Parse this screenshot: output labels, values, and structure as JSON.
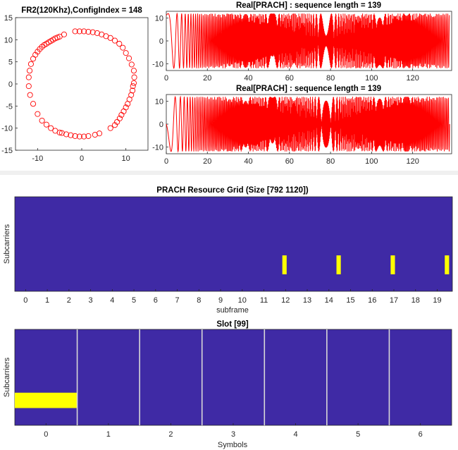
{
  "chart_data": [
    {
      "type": "scatter",
      "title": "FR2(120Khz),ConfigIndex = 148",
      "xlim": [
        -15,
        15
      ],
      "ylim": [
        -15,
        15
      ],
      "xticks": [
        "-10",
        "0",
        "10"
      ],
      "yticks": [
        "15",
        "10",
        "5",
        "0",
        "-5",
        "-10",
        "-15"
      ],
      "marker": "circle",
      "color": "#ff0000",
      "points": {
        "x": [
          -1.5,
          -0.5,
          0.5,
          1.5,
          2.5,
          3.5,
          4.5,
          5.5,
          6.5,
          7.5,
          8.5,
          9.3,
          10.0,
          10.7,
          11.3,
          11.8,
          11.9,
          11.8,
          11.6,
          11.5,
          11.2,
          10.8,
          10.4,
          10.0,
          9.5,
          9.0,
          8.6,
          8.0,
          7.5,
          6.5,
          4.0,
          3.0,
          1.5,
          0.5,
          -0.5,
          -1.5,
          -2.5,
          -3.5,
          -4.5,
          -5.0,
          -6.0,
          -7.0,
          -8.0,
          -9.0,
          -10.0,
          -11.0,
          -11.7,
          -12.0,
          -12.0,
          -11.8,
          -11.5,
          -11.0,
          -10.5,
          -10.0,
          -9.5,
          -9.0,
          -8.5,
          -8.0,
          -7.5,
          -7.0,
          -6.5,
          -6.0,
          -5.5,
          -5.0,
          -4.0
        ],
        "y": [
          11.9,
          11.9,
          11.9,
          11.8,
          11.7,
          11.5,
          11.2,
          10.8,
          10.4,
          9.8,
          9.1,
          8.2,
          7.0,
          5.8,
          4.4,
          3.0,
          1.5,
          0.2,
          -0.5,
          -1.5,
          -2.5,
          -3.5,
          -4.5,
          -5.3,
          -6.2,
          -7.0,
          -7.8,
          -8.6,
          -9.3,
          -10.0,
          -11.2,
          -11.5,
          -11.8,
          -11.9,
          -11.9,
          -11.8,
          -11.6,
          -11.4,
          -11.1,
          -11.0,
          -10.6,
          -10.0,
          -9.2,
          -8.3,
          -6.8,
          -4.5,
          -2.5,
          -0.5,
          1.5,
          3.0,
          4.5,
          5.7,
          6.6,
          7.3,
          7.9,
          8.4,
          8.8,
          9.1,
          9.4,
          9.7,
          10.0,
          10.3,
          10.5,
          10.7,
          11.2
        ]
      }
    },
    {
      "type": "line",
      "title": "Real[PRACH] : sequence length = 139",
      "xlim": [
        0,
        139
      ],
      "ylim": [
        -13,
        13
      ],
      "xticks": [
        "0",
        "20",
        "40",
        "60",
        "80",
        "100",
        "120"
      ],
      "yticks": [
        "10",
        "0",
        "-10"
      ],
      "color": "#ff0000",
      "series": [
        {
          "root": 148,
          "length": 139,
          "shape": "chirp-cos",
          "amplitude": 12,
          "phase_offset": 0.35
        }
      ]
    },
    {
      "type": "line",
      "title": "Real[PRACH] : sequence length = 139",
      "xlim": [
        0,
        139
      ],
      "ylim": [
        -13,
        13
      ],
      "xticks": [
        "0",
        "20",
        "40",
        "60",
        "80",
        "100",
        "120"
      ],
      "yticks": [
        "10",
        "0",
        "-10"
      ],
      "color": "#ff0000",
      "series": [
        {
          "root": 148,
          "length": 139,
          "shape": "chirp-sin",
          "amplitude": 12,
          "phase_offset": 0.0
        }
      ]
    },
    {
      "type": "heatmap",
      "title": "PRACH Resource Grid (Size [792 1120])",
      "xlabel": "subframe",
      "ylabel": "Subcarriers",
      "xlim": [
        -0.5,
        19.7
      ],
      "xticks": [
        "0",
        "1",
        "2",
        "3",
        "4",
        "5",
        "6",
        "7",
        "8",
        "9",
        "10",
        "11",
        "12",
        "13",
        "14",
        "15",
        "16",
        "17",
        "18",
        "19"
      ],
      "background_color": "#3f2aa5",
      "highlight_color": "#ffff00",
      "occasions": [
        {
          "start": 11.85,
          "end": 12.05
        },
        {
          "start": 14.35,
          "end": 14.55
        },
        {
          "start": 16.85,
          "end": 17.05
        },
        {
          "start": 19.35,
          "end": 19.55
        }
      ],
      "occasion_rows": [
        0.62,
        0.82
      ]
    },
    {
      "type": "heatmap",
      "title": "Slot [99]",
      "xlabel": "Symbols",
      "ylabel": "Subcarriers",
      "xlim": [
        -0.5,
        6.5
      ],
      "xticks": [
        "0",
        "1",
        "2",
        "3",
        "4",
        "5",
        "6"
      ],
      "background_color": "#3f2aa5",
      "highlight_color": "#ffff00",
      "symbol_boundaries": [
        0.5,
        1.5,
        2.5,
        3.5,
        4.5,
        5.5
      ],
      "occupied": {
        "symbol_start": -0.5,
        "symbol_end": 0.5,
        "rows": [
          0.66,
          0.82
        ]
      }
    }
  ]
}
